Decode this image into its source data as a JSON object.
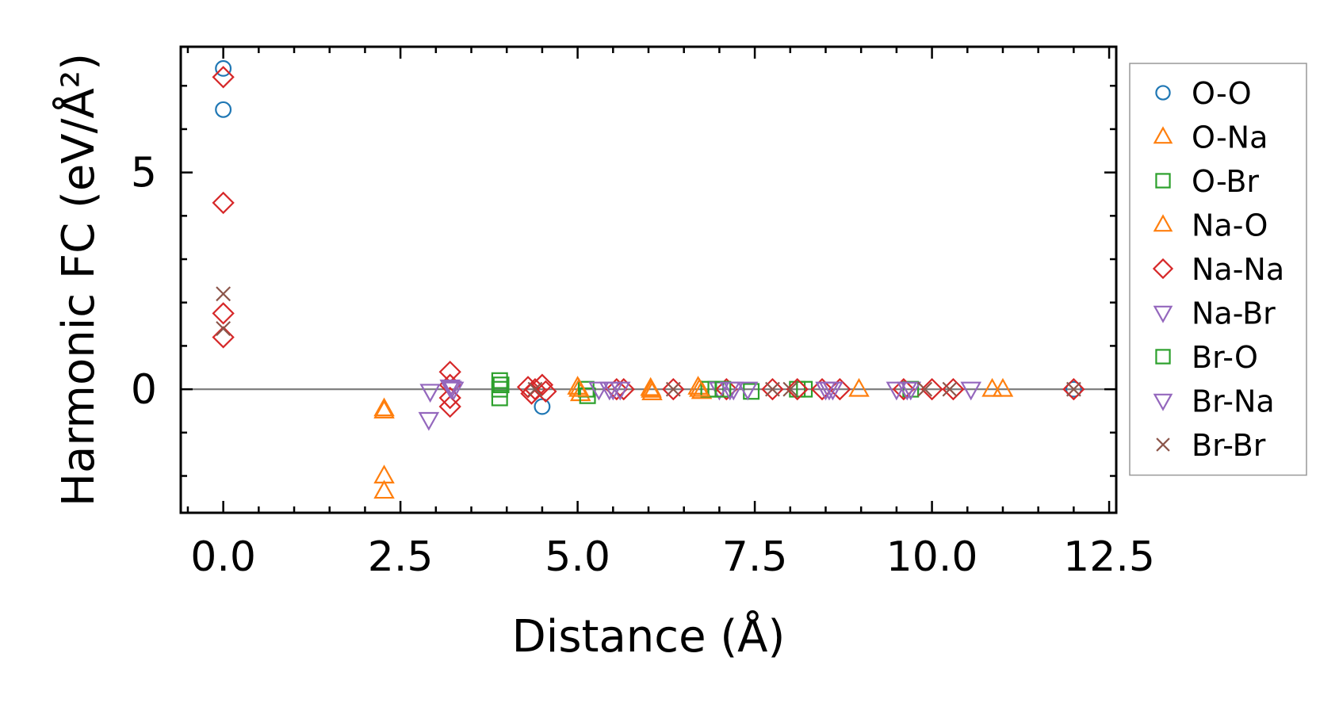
{
  "chart_data": {
    "type": "scatter",
    "title": "",
    "xlabel": "Distance (Å)",
    "ylabel": "Harmonic FC (eV/Å²)",
    "xlim": [
      -0.6,
      12.6
    ],
    "ylim": [
      -2.85,
      7.9
    ],
    "x_ticks": [
      0.0,
      2.5,
      5.0,
      7.5,
      10.0,
      12.5
    ],
    "x_tick_labels": [
      "0.0",
      "2.5",
      "5.0",
      "7.5",
      "10.0",
      "12.5"
    ],
    "y_ticks": [
      0,
      5
    ],
    "y_tick_labels": [
      "0",
      "5"
    ],
    "zero_line": true,
    "grid": false,
    "legend_position": "right-outside",
    "series": [
      {
        "name": "O-O",
        "marker": "circle",
        "color": "#1f77b4",
        "x": [
          0.0,
          0.0,
          4.5,
          12.0
        ],
        "y": [
          7.4,
          6.45,
          -0.4,
          0.0
        ]
      },
      {
        "name": "O-Na",
        "marker": "triangle-up",
        "color": "#ff7f0e",
        "x": [
          2.27,
          2.27,
          2.27,
          5.0,
          5.04,
          6.03,
          6.05,
          6.7,
          6.75,
          8.97,
          10.85,
          11.0
        ],
        "y": [
          -0.45,
          -2.0,
          -2.35,
          0.05,
          -0.1,
          0.02,
          -0.08,
          0.05,
          -0.05,
          0.0,
          0.0,
          0.0
        ]
      },
      {
        "name": "O-Br",
        "marker": "square",
        "color": "#2ca02c",
        "x": [
          3.9,
          3.9,
          3.9,
          5.12,
          5.14,
          6.85,
          6.95,
          7.45,
          8.1,
          8.2,
          9.7
        ],
        "y": [
          0.2,
          0.0,
          -0.2,
          0.0,
          -0.15,
          0.0,
          0.0,
          -0.05,
          0.0,
          0.0,
          0.0
        ]
      },
      {
        "name": "Na-O",
        "marker": "triangle-up",
        "color": "#ff7f0e",
        "x": [
          2.27,
          5.02,
          6.04,
          6.72
        ],
        "y": [
          -0.5,
          0.0,
          -0.02,
          0.0
        ]
      },
      {
        "name": "Na-Na",
        "marker": "diamond",
        "color": "#d62728",
        "x": [
          0.0,
          0.0,
          0.0,
          0.0,
          3.2,
          3.2,
          3.2,
          3.2,
          4.3,
          4.35,
          4.4,
          4.5,
          4.55,
          5.55,
          5.65,
          6.35,
          7.1,
          7.75,
          8.1,
          8.45,
          8.7,
          9.6,
          10.0,
          10.3,
          12.0
        ],
        "y": [
          7.2,
          4.3,
          1.75,
          1.2,
          0.4,
          0.1,
          -0.2,
          -0.4,
          0.05,
          -0.1,
          0.0,
          0.1,
          -0.05,
          0.0,
          0.0,
          0.0,
          0.0,
          0.0,
          0.0,
          0.0,
          0.0,
          0.0,
          0.0,
          0.0,
          0.0
        ]
      },
      {
        "name": "Na-Br",
        "marker": "triangle-down",
        "color": "#9467bd",
        "x": [
          2.9,
          2.92,
          3.2,
          3.25,
          5.3,
          5.5,
          5.6,
          7.0,
          7.2,
          7.4,
          8.5,
          8.6,
          9.5,
          9.7,
          10.55
        ],
        "y": [
          -0.7,
          -0.05,
          0.05,
          0.0,
          0.0,
          0.0,
          0.0,
          0.0,
          0.0,
          0.0,
          0.0,
          0.0,
          0.0,
          0.0,
          0.0
        ]
      },
      {
        "name": "Br-O",
        "marker": "square",
        "color": "#2ca02c",
        "x": [
          3.92,
          7.05
        ],
        "y": [
          0.1,
          0.0
        ]
      },
      {
        "name": "Br-Na",
        "marker": "triangle-down",
        "color": "#9467bd",
        "x": [
          3.22,
          5.45,
          7.15,
          8.55,
          9.65
        ],
        "y": [
          0.02,
          0.0,
          0.0,
          0.0,
          0.0
        ]
      },
      {
        "name": "Br-Br",
        "marker": "x",
        "color": "#8c564b",
        "x": [
          0.0,
          0.0,
          4.4,
          6.35,
          7.75,
          8.0,
          9.9,
          10.25,
          12.0
        ],
        "y": [
          2.2,
          1.4,
          0.0,
          0.0,
          0.0,
          0.0,
          0.0,
          0.0,
          0.0
        ]
      }
    ]
  }
}
